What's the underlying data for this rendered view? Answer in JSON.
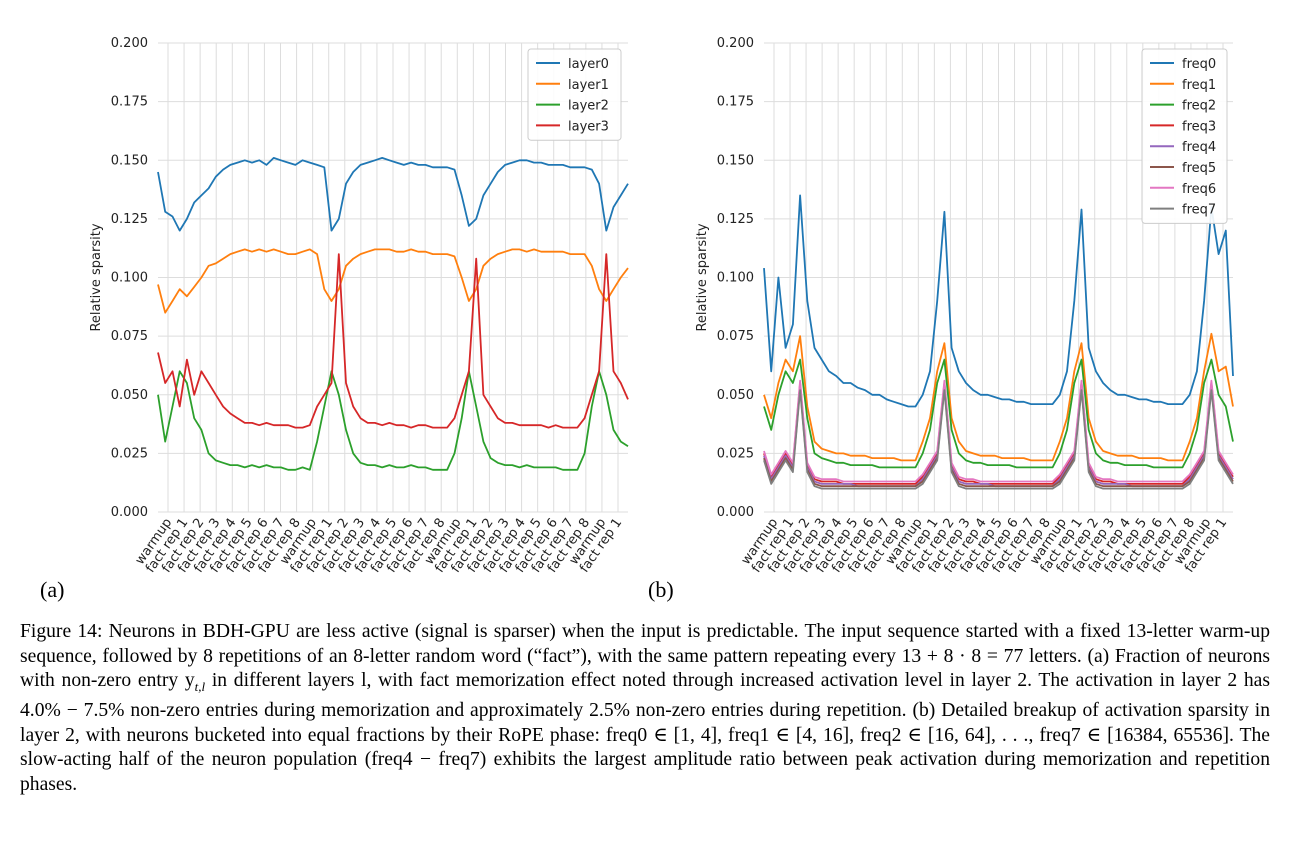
{
  "chart_data": [
    {
      "type": "line",
      "panel_label": "(a)",
      "ylabel": "Relative sparsity",
      "ylim": [
        0,
        0.2
      ],
      "yticks": [
        "0.000",
        "0.025",
        "0.050",
        "0.075",
        "0.100",
        "0.125",
        "0.150",
        "0.175",
        "0.200"
      ],
      "xticks": [
        "warmup",
        "fact rep 1",
        "fact rep 2",
        "fact rep 3",
        "fact rep 4",
        "fact rep 5",
        "fact rep 6",
        "fact rep 7",
        "fact rep 8",
        "warmup",
        "fact rep 1",
        "fact rep 2",
        "fact rep 3",
        "fact rep 4",
        "fact rep 5",
        "fact rep 6",
        "fact rep 7",
        "fact rep 8",
        "warmup",
        "fact rep 1",
        "fact rep 2",
        "fact rep 3",
        "fact rep 4",
        "fact rep 5",
        "fact rep 6",
        "fact rep 7",
        "fact rep 8",
        "warmup",
        "fact rep 1"
      ],
      "legend_position": "top-right",
      "series": [
        {
          "name": "layer0",
          "color": "#1f77b4",
          "values": [
            0.145,
            0.128,
            0.126,
            0.12,
            0.125,
            0.132,
            0.135,
            0.138,
            0.143,
            0.146,
            0.148,
            0.149,
            0.15,
            0.149,
            0.15,
            0.148,
            0.151,
            0.15,
            0.149,
            0.148,
            0.15,
            0.149,
            0.148,
            0.147,
            0.12,
            0.125,
            0.14,
            0.145,
            0.148,
            0.149,
            0.15,
            0.151,
            0.15,
            0.149,
            0.148,
            0.149,
            0.148,
            0.148,
            0.147,
            0.147,
            0.147,
            0.146,
            0.135,
            0.122,
            0.125,
            0.135,
            0.14,
            0.145,
            0.148,
            0.149,
            0.15,
            0.15,
            0.149,
            0.149,
            0.148,
            0.148,
            0.148,
            0.147,
            0.147,
            0.147,
            0.146,
            0.14,
            0.12,
            0.13,
            0.135,
            0.14
          ]
        },
        {
          "name": "layer1",
          "color": "#ff7f0e",
          "values": [
            0.097,
            0.085,
            0.09,
            0.095,
            0.092,
            0.096,
            0.1,
            0.105,
            0.106,
            0.108,
            0.11,
            0.111,
            0.112,
            0.111,
            0.112,
            0.111,
            0.112,
            0.111,
            0.11,
            0.11,
            0.111,
            0.112,
            0.11,
            0.095,
            0.09,
            0.095,
            0.105,
            0.108,
            0.11,
            0.111,
            0.112,
            0.112,
            0.112,
            0.111,
            0.111,
            0.112,
            0.111,
            0.111,
            0.11,
            0.11,
            0.11,
            0.109,
            0.1,
            0.09,
            0.095,
            0.105,
            0.108,
            0.11,
            0.111,
            0.112,
            0.112,
            0.111,
            0.112,
            0.111,
            0.111,
            0.111,
            0.111,
            0.11,
            0.11,
            0.11,
            0.105,
            0.095,
            0.09,
            0.095,
            0.1,
            0.104
          ]
        },
        {
          "name": "layer2",
          "color": "#2ca02c",
          "values": [
            0.05,
            0.03,
            0.045,
            0.06,
            0.055,
            0.04,
            0.035,
            0.025,
            0.022,
            0.021,
            0.02,
            0.02,
            0.019,
            0.02,
            0.019,
            0.02,
            0.019,
            0.019,
            0.018,
            0.018,
            0.019,
            0.018,
            0.03,
            0.045,
            0.06,
            0.05,
            0.035,
            0.025,
            0.021,
            0.02,
            0.02,
            0.019,
            0.02,
            0.019,
            0.019,
            0.02,
            0.019,
            0.019,
            0.018,
            0.018,
            0.018,
            0.025,
            0.04,
            0.06,
            0.045,
            0.03,
            0.023,
            0.021,
            0.02,
            0.02,
            0.019,
            0.02,
            0.019,
            0.019,
            0.019,
            0.019,
            0.018,
            0.018,
            0.018,
            0.025,
            0.045,
            0.06,
            0.05,
            0.035,
            0.03,
            0.028
          ]
        },
        {
          "name": "layer3",
          "color": "#d62728",
          "values": [
            0.068,
            0.055,
            0.06,
            0.045,
            0.065,
            0.05,
            0.06,
            0.055,
            0.05,
            0.045,
            0.042,
            0.04,
            0.038,
            0.038,
            0.037,
            0.038,
            0.037,
            0.037,
            0.037,
            0.036,
            0.036,
            0.037,
            0.045,
            0.05,
            0.055,
            0.11,
            0.055,
            0.045,
            0.04,
            0.038,
            0.038,
            0.037,
            0.038,
            0.037,
            0.037,
            0.036,
            0.037,
            0.037,
            0.036,
            0.036,
            0.036,
            0.04,
            0.05,
            0.06,
            0.108,
            0.05,
            0.045,
            0.04,
            0.038,
            0.038,
            0.037,
            0.037,
            0.037,
            0.037,
            0.036,
            0.037,
            0.036,
            0.036,
            0.036,
            0.04,
            0.05,
            0.06,
            0.11,
            0.06,
            0.055,
            0.048
          ]
        }
      ]
    },
    {
      "type": "line",
      "panel_label": "(b)",
      "ylabel": "Relative sparsity",
      "ylim": [
        0,
        0.2
      ],
      "yticks": [
        "0.000",
        "0.025",
        "0.050",
        "0.075",
        "0.100",
        "0.125",
        "0.150",
        "0.175",
        "0.200"
      ],
      "xticks": [
        "warmup",
        "fact rep 1",
        "fact rep 2",
        "fact rep 3",
        "fact rep 4",
        "fact rep 5",
        "fact rep 6",
        "fact rep 7",
        "fact rep 8",
        "warmup",
        "fact rep 1",
        "fact rep 2",
        "fact rep 3",
        "fact rep 4",
        "fact rep 5",
        "fact rep 6",
        "fact rep 7",
        "fact rep 8",
        "warmup",
        "fact rep 1",
        "fact rep 2",
        "fact rep 3",
        "fact rep 4",
        "fact rep 5",
        "fact rep 6",
        "fact rep 7",
        "fact rep 8",
        "warmup",
        "fact rep 1"
      ],
      "legend_position": "top-right",
      "series": [
        {
          "name": "freq0",
          "color": "#1f77b4",
          "values": [
            0.104,
            0.06,
            0.1,
            0.07,
            0.08,
            0.135,
            0.09,
            0.07,
            0.065,
            0.06,
            0.058,
            0.055,
            0.055,
            0.053,
            0.052,
            0.05,
            0.05,
            0.048,
            0.047,
            0.046,
            0.045,
            0.045,
            0.05,
            0.06,
            0.09,
            0.128,
            0.07,
            0.06,
            0.055,
            0.052,
            0.05,
            0.05,
            0.049,
            0.048,
            0.048,
            0.047,
            0.047,
            0.046,
            0.046,
            0.046,
            0.046,
            0.05,
            0.06,
            0.09,
            0.129,
            0.07,
            0.06,
            0.055,
            0.052,
            0.05,
            0.05,
            0.049,
            0.048,
            0.048,
            0.047,
            0.047,
            0.046,
            0.046,
            0.046,
            0.05,
            0.06,
            0.09,
            0.13,
            0.11,
            0.12,
            0.058
          ]
        },
        {
          "name": "freq1",
          "color": "#ff7f0e",
          "values": [
            0.05,
            0.04,
            0.055,
            0.065,
            0.06,
            0.075,
            0.045,
            0.03,
            0.027,
            0.026,
            0.025,
            0.025,
            0.024,
            0.024,
            0.024,
            0.023,
            0.023,
            0.023,
            0.023,
            0.022,
            0.022,
            0.022,
            0.03,
            0.04,
            0.06,
            0.072,
            0.04,
            0.03,
            0.026,
            0.025,
            0.024,
            0.024,
            0.024,
            0.023,
            0.023,
            0.023,
            0.023,
            0.022,
            0.022,
            0.022,
            0.022,
            0.03,
            0.04,
            0.06,
            0.072,
            0.04,
            0.03,
            0.026,
            0.025,
            0.024,
            0.024,
            0.024,
            0.023,
            0.023,
            0.023,
            0.023,
            0.022,
            0.022,
            0.022,
            0.03,
            0.04,
            0.06,
            0.076,
            0.06,
            0.062,
            0.045
          ]
        },
        {
          "name": "freq2",
          "color": "#2ca02c",
          "values": [
            0.045,
            0.035,
            0.05,
            0.06,
            0.055,
            0.065,
            0.04,
            0.025,
            0.023,
            0.022,
            0.021,
            0.021,
            0.02,
            0.02,
            0.02,
            0.02,
            0.019,
            0.019,
            0.019,
            0.019,
            0.019,
            0.019,
            0.025,
            0.035,
            0.055,
            0.065,
            0.035,
            0.025,
            0.022,
            0.021,
            0.021,
            0.02,
            0.02,
            0.02,
            0.02,
            0.019,
            0.019,
            0.019,
            0.019,
            0.019,
            0.019,
            0.025,
            0.035,
            0.055,
            0.065,
            0.035,
            0.025,
            0.022,
            0.021,
            0.021,
            0.02,
            0.02,
            0.02,
            0.02,
            0.019,
            0.019,
            0.019,
            0.019,
            0.019,
            0.025,
            0.035,
            0.055,
            0.065,
            0.05,
            0.045,
            0.03
          ]
        },
        {
          "name": "freq3",
          "color": "#d62728",
          "values": [
            0.025,
            0.015,
            0.02,
            0.025,
            0.02,
            0.055,
            0.02,
            0.014,
            0.013,
            0.013,
            0.013,
            0.012,
            0.012,
            0.012,
            0.012,
            0.012,
            0.012,
            0.012,
            0.012,
            0.012,
            0.012,
            0.012,
            0.015,
            0.02,
            0.025,
            0.055,
            0.02,
            0.014,
            0.013,
            0.013,
            0.012,
            0.012,
            0.012,
            0.012,
            0.012,
            0.012,
            0.012,
            0.012,
            0.012,
            0.012,
            0.012,
            0.015,
            0.02,
            0.025,
            0.055,
            0.02,
            0.014,
            0.013,
            0.013,
            0.012,
            0.012,
            0.012,
            0.012,
            0.012,
            0.012,
            0.012,
            0.012,
            0.012,
            0.012,
            0.015,
            0.02,
            0.025,
            0.055,
            0.025,
            0.02,
            0.015
          ]
        },
        {
          "name": "freq4",
          "color": "#9467bd",
          "values": [
            0.024,
            0.014,
            0.019,
            0.024,
            0.019,
            0.054,
            0.019,
            0.013,
            0.012,
            0.012,
            0.012,
            0.012,
            0.012,
            0.011,
            0.011,
            0.011,
            0.011,
            0.011,
            0.011,
            0.011,
            0.011,
            0.011,
            0.014,
            0.019,
            0.024,
            0.054,
            0.019,
            0.013,
            0.012,
            0.012,
            0.012,
            0.012,
            0.011,
            0.011,
            0.011,
            0.011,
            0.011,
            0.011,
            0.011,
            0.011,
            0.011,
            0.014,
            0.019,
            0.024,
            0.054,
            0.019,
            0.013,
            0.012,
            0.012,
            0.012,
            0.012,
            0.011,
            0.011,
            0.011,
            0.011,
            0.011,
            0.011,
            0.011,
            0.011,
            0.014,
            0.019,
            0.024,
            0.054,
            0.024,
            0.019,
            0.014
          ]
        },
        {
          "name": "freq5",
          "color": "#8c564b",
          "values": [
            0.023,
            0.013,
            0.018,
            0.023,
            0.018,
            0.053,
            0.018,
            0.012,
            0.011,
            0.011,
            0.011,
            0.011,
            0.011,
            0.011,
            0.011,
            0.011,
            0.011,
            0.011,
            0.011,
            0.011,
            0.011,
            0.011,
            0.013,
            0.018,
            0.023,
            0.053,
            0.018,
            0.012,
            0.011,
            0.011,
            0.011,
            0.011,
            0.011,
            0.011,
            0.011,
            0.011,
            0.011,
            0.011,
            0.011,
            0.011,
            0.011,
            0.013,
            0.018,
            0.023,
            0.053,
            0.018,
            0.012,
            0.011,
            0.011,
            0.011,
            0.011,
            0.011,
            0.011,
            0.011,
            0.011,
            0.011,
            0.011,
            0.011,
            0.011,
            0.013,
            0.018,
            0.023,
            0.053,
            0.023,
            0.018,
            0.013
          ]
        },
        {
          "name": "freq6",
          "color": "#e377c2",
          "values": [
            0.026,
            0.016,
            0.021,
            0.026,
            0.021,
            0.056,
            0.021,
            0.015,
            0.014,
            0.014,
            0.014,
            0.013,
            0.013,
            0.013,
            0.013,
            0.013,
            0.013,
            0.013,
            0.013,
            0.013,
            0.013,
            0.013,
            0.016,
            0.021,
            0.026,
            0.056,
            0.021,
            0.015,
            0.014,
            0.014,
            0.013,
            0.013,
            0.013,
            0.013,
            0.013,
            0.013,
            0.013,
            0.013,
            0.013,
            0.013,
            0.013,
            0.016,
            0.021,
            0.026,
            0.056,
            0.021,
            0.015,
            0.014,
            0.014,
            0.013,
            0.013,
            0.013,
            0.013,
            0.013,
            0.013,
            0.013,
            0.013,
            0.013,
            0.013,
            0.016,
            0.021,
            0.026,
            0.056,
            0.026,
            0.021,
            0.016
          ]
        },
        {
          "name": "freq7",
          "color": "#7f7f7f",
          "values": [
            0.022,
            0.012,
            0.017,
            0.022,
            0.017,
            0.052,
            0.017,
            0.011,
            0.01,
            0.01,
            0.01,
            0.01,
            0.01,
            0.01,
            0.01,
            0.01,
            0.01,
            0.01,
            0.01,
            0.01,
            0.01,
            0.01,
            0.012,
            0.017,
            0.022,
            0.052,
            0.017,
            0.011,
            0.01,
            0.01,
            0.01,
            0.01,
            0.01,
            0.01,
            0.01,
            0.01,
            0.01,
            0.01,
            0.01,
            0.01,
            0.01,
            0.012,
            0.017,
            0.022,
            0.052,
            0.017,
            0.011,
            0.01,
            0.01,
            0.01,
            0.01,
            0.01,
            0.01,
            0.01,
            0.01,
            0.01,
            0.01,
            0.01,
            0.01,
            0.012,
            0.017,
            0.022,
            0.052,
            0.022,
            0.017,
            0.012
          ]
        }
      ]
    }
  ],
  "caption": {
    "p1": "Figure 14: Neurons in BDH-GPU are less active (signal is sparser) when the input is predictable. The input sequence started with a fixed 13-letter warm-up sequence, followed by 8 repetitions of an 8-letter random word (“fact”), with the same pattern repeating every 13 + 8 · 8 = 77 letters. (a) Fraction of neurons with non-zero entry y",
    "sub": "t,l",
    "p2": " in different layers l, with fact memorization effect noted through increased activation level in layer 2. The activation in layer 2 has 4.0% − 7.5% non-zero entries during memorization and approximately 2.5% non-zero entries during repetition. (b) Detailed breakup of activation sparsity in layer 2, with neurons bucketed into equal fractions by their RoPE phase: freq0 ∈ [1, 4], freq1 ∈ [4, 16], freq2 ∈ [16, 64], . . ., freq7 ∈ [16384, 65536]. The slow-acting half of the neuron population (freq4 − freq7) exhibits the largest amplitude ratio between peak activation during memorization and repetition phases."
  }
}
